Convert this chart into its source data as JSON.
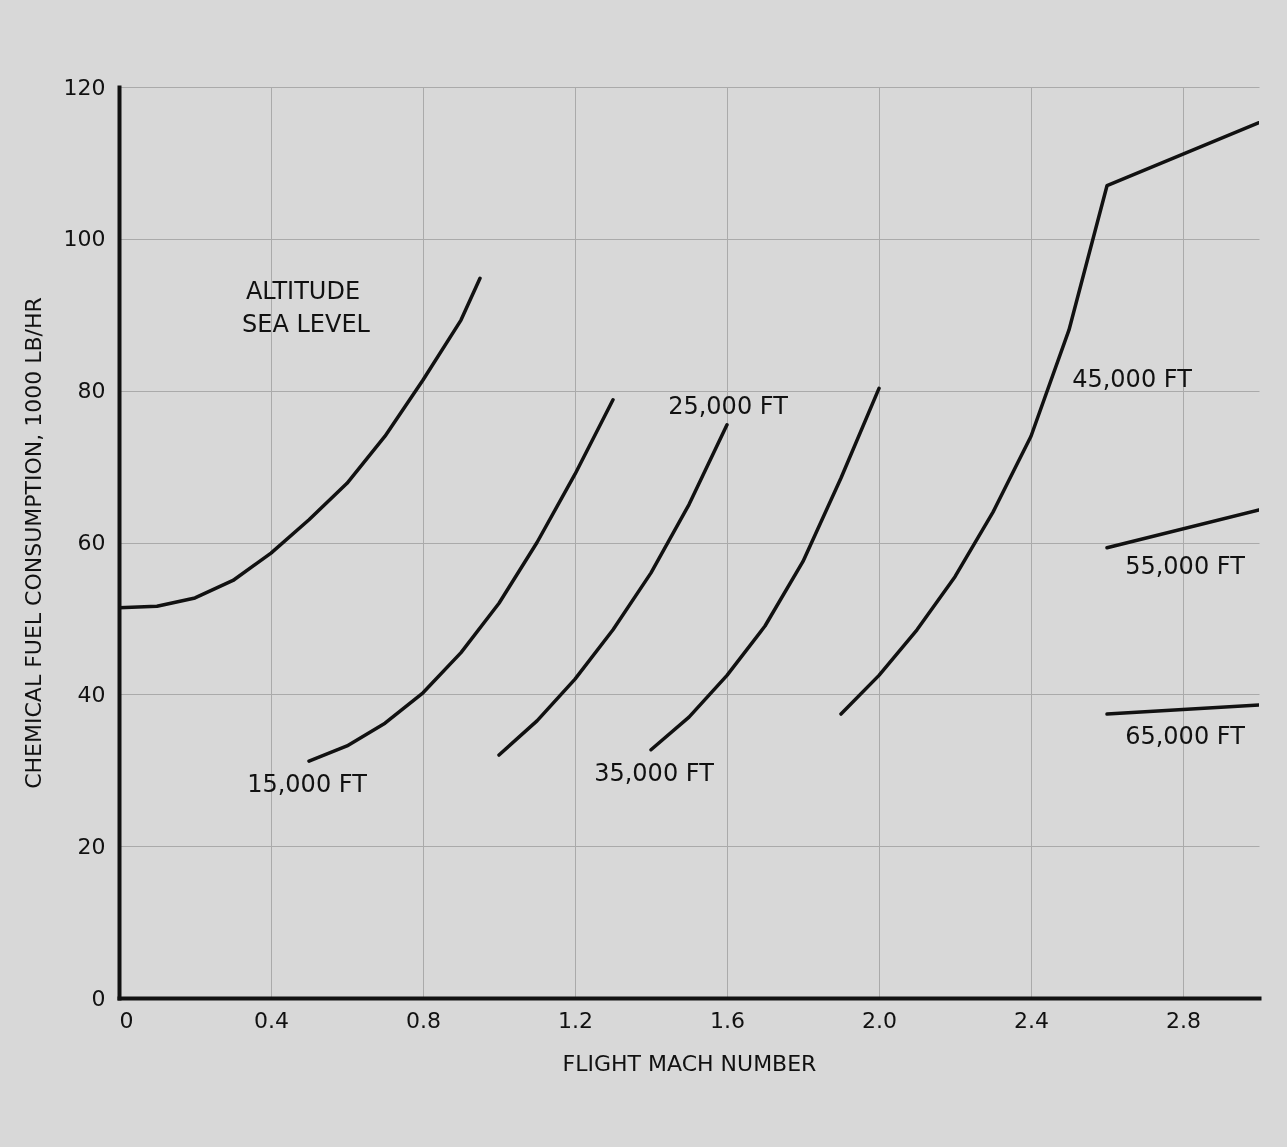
{
  "chart_data": {
    "type": "line",
    "xlabel": "FLIGHT MACH NUMBER",
    "ylabel": "CHEMICAL FUEL CONSUMPTION, 1000 LB/HR",
    "xlim": [
      0,
      3.0
    ],
    "ylim": [
      0,
      120
    ],
    "xticks": [
      0,
      0.4,
      0.8,
      1.2,
      1.6,
      {
        "value": 2,
        "label": "2.0"
      },
      2.4,
      2.8
    ],
    "yticks": [
      0,
      20,
      40,
      60,
      80,
      100,
      120
    ],
    "grid": true,
    "marker": "none",
    "line_style": "solid",
    "annotations": [
      "ALTITUDE"
    ],
    "series": [
      {
        "name": "SEA LEVEL",
        "color": "#111111",
        "x": [
          0,
          0.1,
          0.2,
          0.3,
          0.4,
          0.5,
          0.6,
          0.7,
          0.8,
          0.9,
          0.95
        ],
        "values": [
          51.4,
          51.6,
          52.7,
          55,
          58.6,
          63,
          67.8,
          74,
          81.4,
          89.3,
          94.8
        ]
      },
      {
        "name": "15,000 FT",
        "color": "#111111",
        "x": [
          0.5,
          0.6,
          0.7,
          0.8,
          0.9,
          1.0,
          1.1,
          1.2,
          1.3
        ],
        "values": [
          31.2,
          33.2,
          36.2,
          40.2,
          45.5,
          52,
          60,
          69,
          78.8
        ]
      },
      {
        "name": "25,000 FT",
        "color": "#111111",
        "x": [
          1.0,
          1.1,
          1.2,
          1.3,
          1.4,
          1.5,
          1.6
        ],
        "values": [
          32,
          36.5,
          42,
          48.5,
          56,
          65,
          75.5
        ]
      },
      {
        "name": "35,000 FT",
        "color": "#111111",
        "x": [
          1.4,
          1.5,
          1.6,
          1.7,
          1.8,
          1.9,
          2.0
        ],
        "values": [
          32.7,
          37,
          42.5,
          49,
          57.5,
          68.5,
          80.3
        ]
      },
      {
        "name": "45,000 FT",
        "color": "#111111",
        "x": [
          1.9,
          2.0,
          2.1,
          2.2,
          2.3,
          2.4,
          2.5,
          2.6,
          3.0
        ],
        "values": [
          37.4,
          42.5,
          48.5,
          55.5,
          64,
          74,
          88,
          107,
          115.3
        ]
      },
      {
        "name": "55,000 FT",
        "color": "#111111",
        "x": [
          2.6,
          3.0
        ],
        "values": [
          59.3,
          64.3
        ]
      },
      {
        "name": "65,000 FT",
        "color": "#111111",
        "x": [
          2.6,
          3.0
        ],
        "values": [
          37.4,
          38.6
        ]
      }
    ]
  }
}
